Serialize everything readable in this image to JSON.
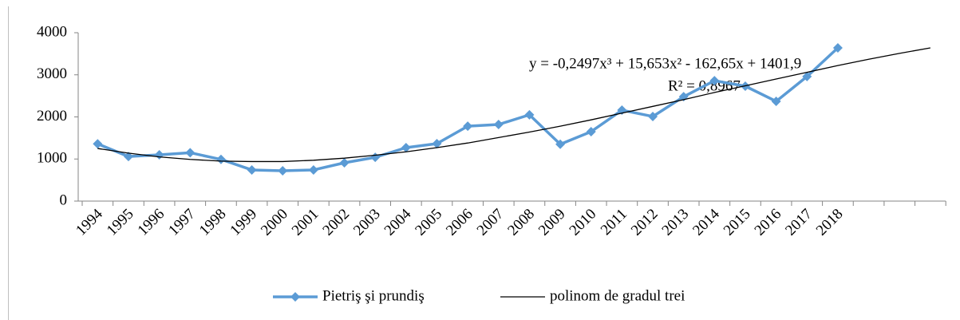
{
  "chart_data": {
    "type": "line",
    "categories": [
      "1994",
      "1995",
      "1996",
      "1997",
      "1998",
      "1999",
      "2000",
      "2001",
      "2002",
      "2003",
      "2004",
      "2005",
      "2006",
      "2007",
      "2008",
      "2009",
      "2010",
      "2011",
      "2012",
      "2013",
      "2014",
      "2015",
      "2016",
      "2017",
      "2018",
      null,
      null,
      null
    ],
    "series": [
      {
        "name": "Pietriş şi prundiş",
        "color": "#5b9bd5",
        "marker": "diamond",
        "values": [
          1360,
          1060,
          1100,
          1150,
          990,
          740,
          720,
          740,
          910,
          1040,
          1270,
          1365,
          1780,
          1820,
          2050,
          1350,
          1650,
          2160,
          2010,
          2480,
          2860,
          2730,
          2370,
          2960,
          3640,
          null,
          null,
          null
        ]
      },
      {
        "name": "polinom de gradul trei",
        "color": "#000000",
        "marker": "none",
        "values": [
          1250,
          1140,
          1050,
          990,
          950,
          940,
          940,
          970,
          1020,
          1090,
          1170,
          1270,
          1380,
          1510,
          1640,
          1780,
          1930,
          2090,
          2250,
          2410,
          2580,
          2740,
          2900,
          3060,
          3220,
          3370,
          3510,
          3640
        ]
      }
    ],
    "annotations": [
      "y = -0,2497x³ + 15,653x² - 162,65x + 1401,9",
      "R² = 0,8967"
    ],
    "ylim": [
      0,
      4000
    ],
    "yticks": [
      0,
      1000,
      2000,
      3000,
      4000
    ],
    "grid": false,
    "legend": "bottom"
  }
}
